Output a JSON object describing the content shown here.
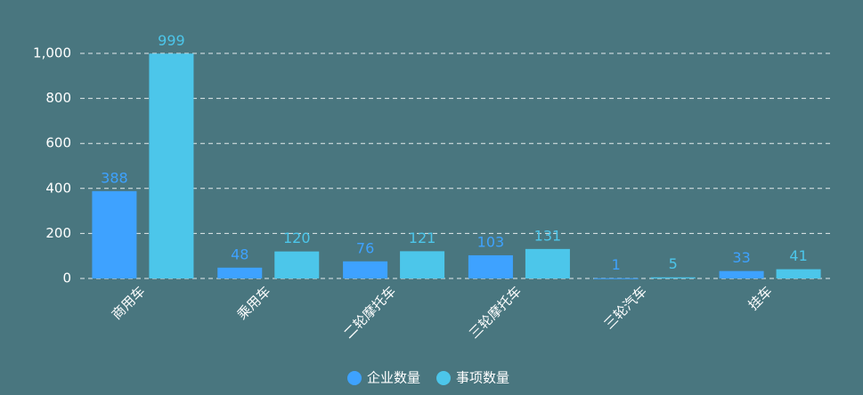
{
  "chart_data": {
    "type": "bar",
    "categories": [
      "商用车",
      "乘用车",
      "二轮摩托车",
      "三轮摩托车",
      "三轮汽车",
      "挂车"
    ],
    "series": [
      {
        "name": "企业数量",
        "color": "#3ea2ff",
        "values": [
          388,
          48,
          76,
          103,
          1,
          33
        ]
      },
      {
        "name": "事项数量",
        "color": "#4cc6ea",
        "values": [
          999,
          120,
          121,
          131,
          5,
          41
        ]
      }
    ],
    "ylim": [
      0,
      1000
    ],
    "yticks": [
      0,
      200,
      400,
      600,
      800,
      {
        "value": 1000,
        "label": "1,000"
      }
    ],
    "grid": true,
    "legend": "bottom"
  }
}
